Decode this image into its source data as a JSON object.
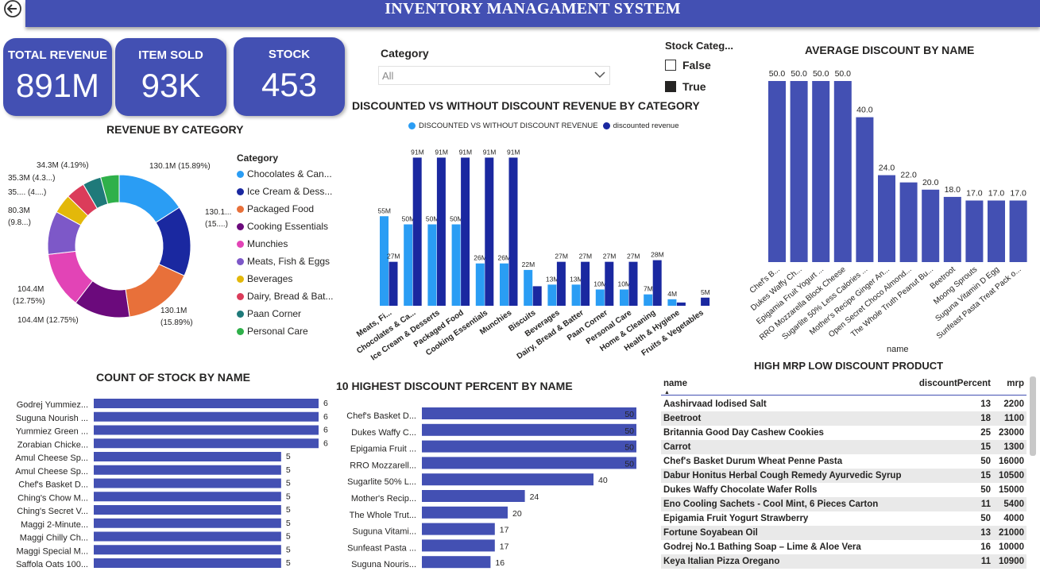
{
  "header": {
    "title": "INVENTORY MANAGAMENT SYSTEM",
    "back_icon": "back-arrow-icon"
  },
  "kpis": [
    {
      "label": "TOTAL REVENUE",
      "value": "891M"
    },
    {
      "label": "ITEM SOLD",
      "value": "93K"
    },
    {
      "label": "STOCK",
      "value": "453"
    }
  ],
  "category_filter": {
    "label": "Category",
    "value": "All"
  },
  "stock_filter": {
    "label": "Stock Categ...",
    "options": [
      {
        "label": "False",
        "checked": false
      },
      {
        "label": "True",
        "checked": true
      }
    ]
  },
  "colors": {
    "accent": "#4350b3",
    "light_blue": "#2a9df4",
    "dark_blue": "#1a28a0"
  },
  "revenue_by_category": {
    "title": "REVENUE BY CATEGORY",
    "legend_title": "Category",
    "legend": [
      {
        "label": "Chocolates & Can...",
        "color": "#2a9df4"
      },
      {
        "label": "Ice Cream & Dess...",
        "color": "#1a28a0"
      },
      {
        "label": "Packaged Food",
        "color": "#e8703a"
      },
      {
        "label": "Cooking Essentials",
        "color": "#6b0a7c"
      },
      {
        "label": "Munchies",
        "color": "#e244b6"
      },
      {
        "label": "Meats, Fish & Eggs",
        "color": "#7d58c8"
      },
      {
        "label": "Beverages",
        "color": "#e3b80a"
      },
      {
        "label": "Dairy, Bread & Bat...",
        "color": "#db3c5a"
      },
      {
        "label": "Paan Corner",
        "color": "#1f7a7a"
      },
      {
        "label": "Personal Care",
        "color": "#2fb04a"
      }
    ],
    "labels": {
      "l1": "130.1M (15.89%)",
      "l2a": "130.1...",
      "l2b": "(15....)",
      "l3a": "130.1M",
      "l3b": "(15.89%)",
      "l4": "104.4M (12.75%)",
      "l5a": "104.4M",
      "l5b": "(12.75%)",
      "l6a": "80.3M",
      "l6b": "(9.8...)",
      "l7": "35.... (4....)",
      "l8": "35.3M (4.3...)",
      "l9": "34.3M (4.19%)"
    }
  },
  "chart_data": [
    {
      "type": "pie",
      "title": "REVENUE BY CATEGORY",
      "categories": [
        "Chocolates & Can...",
        "Ice Cream & Dess...",
        "Packaged Food",
        "Cooking Essentials",
        "Munchies",
        "Meats, Fish & Eggs",
        "Beverages",
        "Dairy, Bread & Bat...",
        "Paan Corner",
        "Personal Care"
      ],
      "values": [
        130.1,
        130.1,
        130.1,
        104.4,
        104.4,
        80.3,
        35.5,
        35.3,
        34.3,
        34.3
      ],
      "unit": "M"
    },
    {
      "type": "bar",
      "title": "DISCOUNTED VS WITHOUT DISCOUNT REVENUE BY CATEGORY",
      "categories": [
        "Meats, Fi...",
        "Chocolates & Ca...",
        "Ice Cream & Desserts",
        "Packaged Food",
        "Cooking Essentials",
        "Munchies",
        "Biscuits",
        "Beverages",
        "Dairy, Bread & Batter",
        "Paan Corner",
        "Personal Care",
        "Home & Cleaning",
        "Health & Hygiene",
        "Fruits & Vegetables"
      ],
      "series": [
        {
          "name": "DISCOUNTED VS WITHOUT DISCOUNT REVENUE",
          "color": "#2a9df4",
          "values": [
            55,
            50,
            50,
            50,
            26,
            26,
            22,
            13,
            13,
            10,
            10,
            7,
            4,
            0
          ],
          "labels": [
            "55M",
            "50M",
            "50M",
            "50M",
            "26M",
            "26M",
            "22M",
            "13M",
            "13M",
            "10M",
            "10M",
            "7M",
            "4M",
            ""
          ]
        },
        {
          "name": "discounted revenue",
          "color": "#1a28a0",
          "values": [
            27,
            91,
            91,
            91,
            91,
            91,
            12,
            27,
            27,
            27,
            27,
            28,
            2,
            5
          ],
          "labels": [
            "27M",
            "91M",
            "91M",
            "91M",
            "91M",
            "91M",
            "",
            "27M",
            "27M",
            "27M",
            "27M",
            "28M",
            "",
            "5M"
          ]
        }
      ]
    },
    {
      "type": "bar",
      "title": "AVERAGE DISCOUNT BY NAME",
      "xlabel": "name",
      "categories": [
        "Chef's B...",
        "Dukes Waffy Ch...",
        "Epigamia Fruit Yogurt ...",
        "RRO Mozzarella Block Cheese",
        "Sugarlite 50% Less Calories ...",
        "Mother's Recipe Ginger An...",
        "Open Secret Choco Almond...",
        "The Whole Truth Peanut Bu...",
        "Beetroot",
        "Moong Sprouts",
        "Suguna Vitamin D Egg",
        "Sunfeast Pasta Treat Pack o..."
      ],
      "values": [
        50,
        50,
        50,
        50,
        40,
        24,
        22,
        20,
        18,
        17,
        17,
        17
      ],
      "labels": [
        "50.0",
        "50.0",
        "50.0",
        "50.0",
        "40.0",
        "24.0",
        "22.0",
        "20.0",
        "18.0",
        "17.0",
        "17.0",
        "17.0"
      ]
    },
    {
      "type": "bar",
      "title": "COUNT OF STOCK BY NAME",
      "orientation": "horizontal",
      "categories": [
        "Godrej Yummiez...",
        "Suguna Nourish ...",
        "Yummiez Green ...",
        "Zorabian Chicke...",
        "Amul Cheese Sp...",
        "Amul Cheese Sp...",
        "Chef's Basket D...",
        "Ching's Chow M...",
        "Ching's Secret V...",
        "Maggi 2-Minute...",
        "Maggi Chilly Ch...",
        "Maggi Special M...",
        "Saffola Oats 100..."
      ],
      "values": [
        6,
        6,
        6,
        6,
        5,
        5,
        5,
        5,
        5,
        5,
        5,
        5,
        5
      ],
      "labels": [
        "6",
        "6",
        "6",
        "6",
        "5",
        "5",
        "5",
        "5",
        "5",
        "5",
        "5",
        "5",
        "5"
      ]
    },
    {
      "type": "bar",
      "title": "10 HIGHEST DISCOUNT PERCENT BY NAME",
      "orientation": "horizontal",
      "categories": [
        "Chef's Basket D...",
        "Dukes Waffy C...",
        "Epigamia Fruit ...",
        "RRO Mozzarell...",
        "Sugarlite 50% L...",
        "Mother's Recip...",
        "The Whole Trut...",
        "Suguna Vitami...",
        "Sunfeast Pasta ...",
        "Suguna Nouris..."
      ],
      "values": [
        50,
        50,
        50,
        50,
        40,
        24,
        20,
        17,
        17,
        16
      ],
      "labels": [
        "50",
        "50",
        "50",
        "50",
        "40",
        "24",
        "20",
        "17",
        "17",
        "16"
      ]
    }
  ],
  "table": {
    "title": "HIGH MRP LOW DISCOUNT PRODUCT",
    "columns": [
      "name",
      "discountPercent",
      "mrp"
    ],
    "rows": [
      [
        "Aashirvaad Iodised Salt",
        "13",
        "2200"
      ],
      [
        "Beetroot",
        "18",
        "1100"
      ],
      [
        "Britannia Good Day Cashew Cookies",
        "25",
        "23000"
      ],
      [
        "Carrot",
        "15",
        "1300"
      ],
      [
        "Chef's Basket Durum Wheat Penne Pasta",
        "50",
        "16000"
      ],
      [
        "Dabur Honitus Herbal Cough Remedy Ayurvedic Syrup",
        "15",
        "10500"
      ],
      [
        "Dukes Waffy Chocolate Wafer Rolls",
        "50",
        "15000"
      ],
      [
        "Eno Cooling Sachets - Cool Mint, 6 Pieces Carton",
        "11",
        "5400"
      ],
      [
        "Epigamia Fruit Yogurt Strawberry",
        "50",
        "4000"
      ],
      [
        "Fortune Soyabean Oil",
        "13",
        "21000"
      ],
      [
        "Godrej No.1 Bathing Soap – Lime & Aloe Vera",
        "16",
        "10000"
      ],
      [
        "Keya Italian Pizza Oregano",
        "11",
        "10900"
      ]
    ]
  }
}
